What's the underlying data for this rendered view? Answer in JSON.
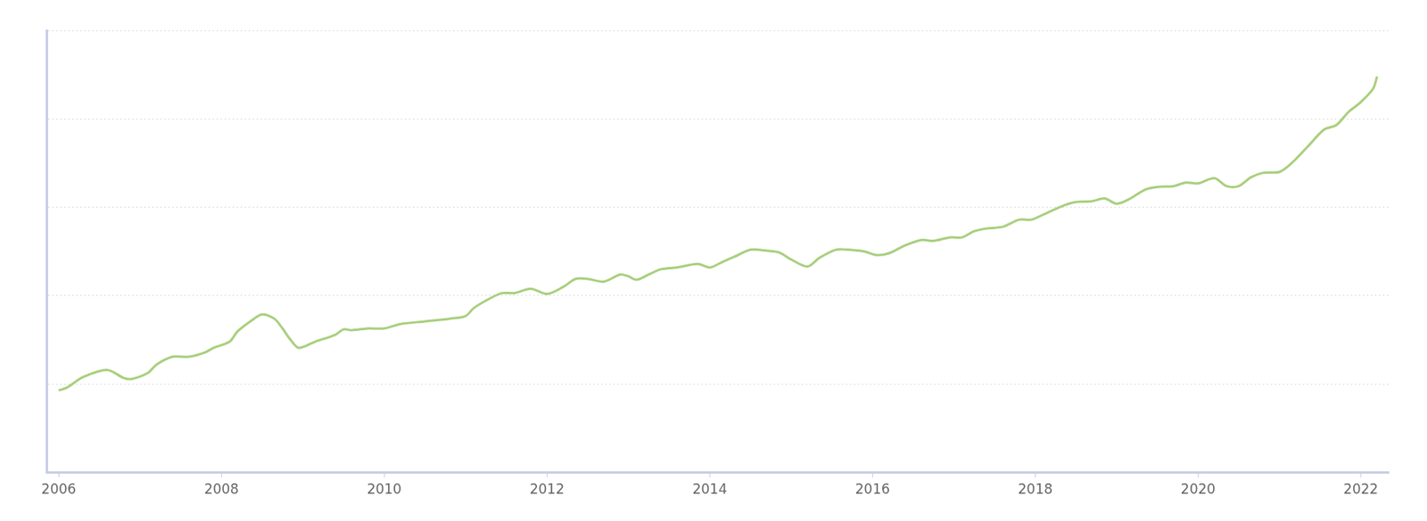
{
  "chart_data": {
    "type": "line",
    "x": [
      2006.0,
      2006.1,
      2006.3,
      2006.6,
      2006.8,
      2006.9,
      2007.1,
      2007.2,
      2007.4,
      2007.6,
      2007.8,
      2007.9,
      2008.1,
      2008.2,
      2008.4,
      2008.5,
      2008.65,
      2008.75,
      2008.85,
      2008.95,
      2009.15,
      2009.4,
      2009.5,
      2009.6,
      2009.8,
      2010.0,
      2010.2,
      2010.5,
      2010.8,
      2011.0,
      2011.1,
      2011.3,
      2011.45,
      2011.6,
      2011.8,
      2012.0,
      2012.2,
      2012.35,
      2012.5,
      2012.7,
      2012.9,
      2013.0,
      2013.1,
      2013.25,
      2013.4,
      2013.6,
      2013.85,
      2014.0,
      2014.15,
      2014.3,
      2014.5,
      2014.7,
      2014.85,
      2015.0,
      2015.2,
      2015.35,
      2015.55,
      2015.7,
      2015.9,
      2016.05,
      2016.2,
      2016.4,
      2016.6,
      2016.75,
      2016.95,
      2017.1,
      2017.25,
      2017.4,
      2017.6,
      2017.8,
      2017.95,
      2018.15,
      2018.35,
      2018.5,
      2018.7,
      2018.85,
      2019.0,
      2019.15,
      2019.35,
      2019.5,
      2019.7,
      2019.85,
      2020.0,
      2020.2,
      2020.35,
      2020.5,
      2020.65,
      2020.8,
      2021.0,
      2021.15,
      2021.35,
      2021.55,
      2021.7,
      2021.85,
      2022.0,
      2022.15,
      2022.2
    ],
    "values": [
      0.93,
      0.96,
      1.08,
      1.16,
      1.07,
      1.06,
      1.13,
      1.22,
      1.31,
      1.31,
      1.36,
      1.41,
      1.48,
      1.6,
      1.74,
      1.79,
      1.74,
      1.63,
      1.5,
      1.41,
      1.48,
      1.56,
      1.62,
      1.61,
      1.63,
      1.63,
      1.68,
      1.71,
      1.74,
      1.77,
      1.86,
      1.97,
      2.03,
      2.03,
      2.08,
      2.02,
      2.1,
      2.19,
      2.19,
      2.16,
      2.24,
      2.22,
      2.18,
      2.24,
      2.3,
      2.32,
      2.36,
      2.32,
      2.38,
      2.44,
      2.52,
      2.51,
      2.49,
      2.41,
      2.33,
      2.43,
      2.52,
      2.52,
      2.5,
      2.46,
      2.48,
      2.57,
      2.63,
      2.62,
      2.66,
      2.66,
      2.73,
      2.76,
      2.78,
      2.86,
      2.86,
      2.94,
      3.02,
      3.06,
      3.07,
      3.1,
      3.04,
      3.09,
      3.2,
      3.23,
      3.24,
      3.28,
      3.27,
      3.33,
      3.24,
      3.24,
      3.34,
      3.39,
      3.4,
      3.5,
      3.69,
      3.88,
      3.93,
      4.08,
      4.19,
      4.34,
      4.48
    ],
    "color": "#a9cf7e",
    "xlim": [
      2005.85,
      2022.34
    ],
    "xticks": [
      2006,
      2008,
      2010,
      2012,
      2014,
      2016,
      2018,
      2020,
      2022
    ],
    "ylim": [
      0,
      5
    ],
    "yticks": [
      0,
      1,
      2,
      3,
      4,
      5
    ],
    "grid": true,
    "tick_labels": "x"
  }
}
